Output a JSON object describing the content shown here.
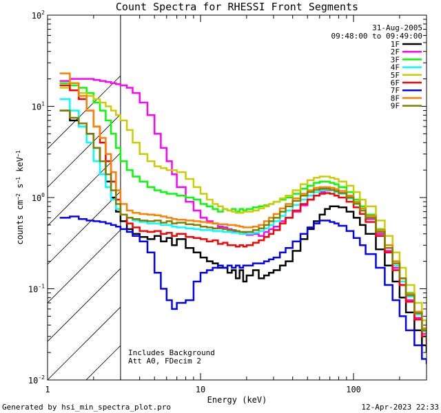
{
  "chart_data": {
    "type": "line",
    "title": "Count Spectra for RHESSI Front Segments",
    "xlabel": "Energy (keV)",
    "ylabel": "counts cm^-2 s^-1 keV^-1",
    "xscale": "log",
    "yscale": "log",
    "xlim": [
      1,
      300
    ],
    "ylim": [
      0.01,
      100
    ],
    "x_ticks": [
      {
        "value": 1,
        "label": "1"
      },
      {
        "value": 10,
        "label": "10"
      },
      {
        "value": 100,
        "label": "100"
      }
    ],
    "y_ticks": [
      {
        "value": 0.01,
        "base": "10",
        "exp": "-2"
      },
      {
        "value": 0.1,
        "base": "10",
        "exp": "-1"
      },
      {
        "value": 1,
        "base": "10",
        "exp": "0"
      },
      {
        "value": 10,
        "base": "10",
        "exp": "1"
      },
      {
        "value": 100,
        "base": "10",
        "exp": "2"
      }
    ],
    "hatched_region": {
      "x_from": 1,
      "x_to": 3
    },
    "date": "31-Aug-2005",
    "time_range": "09:48:00 to 09:49:00",
    "notes": [
      "Includes Background",
      "Att A0, FDecim 2"
    ],
    "series": [
      {
        "name": "1F",
        "color": "#000000",
        "x": [
          1.2,
          1.4,
          1.6,
          1.8,
          2.0,
          2.2,
          2.4,
          2.6,
          2.8,
          3.0,
          3.3,
          3.6,
          4.0,
          4.5,
          5,
          5.5,
          6,
          6.5,
          7,
          8,
          9,
          10,
          11,
          12,
          13,
          14,
          15,
          16,
          17,
          18,
          19,
          20,
          22,
          24,
          26,
          28,
          30,
          33,
          36,
          40,
          45,
          50,
          55,
          60,
          65,
          70,
          75,
          80,
          90,
          100,
          110,
          120,
          140,
          160,
          180,
          200,
          220,
          250,
          280,
          300
        ],
        "y": [
          9,
          7,
          6,
          5,
          3.5,
          2.5,
          1.5,
          1.0,
          0.7,
          0.55,
          0.45,
          0.4,
          0.37,
          0.35,
          0.38,
          0.33,
          0.36,
          0.3,
          0.35,
          0.28,
          0.25,
          0.22,
          0.2,
          0.19,
          0.17,
          0.17,
          0.15,
          0.16,
          0.13,
          0.16,
          0.12,
          0.14,
          0.16,
          0.13,
          0.14,
          0.15,
          0.16,
          0.18,
          0.2,
          0.26,
          0.35,
          0.45,
          0.55,
          0.65,
          0.75,
          0.8,
          0.8,
          0.78,
          0.7,
          0.6,
          0.5,
          0.4,
          0.27,
          0.18,
          0.12,
          0.08,
          0.055,
          0.035,
          0.024,
          0.02
        ]
      },
      {
        "name": "2F",
        "color": "#ff00ff",
        "x": [
          1.2,
          1.4,
          1.6,
          1.8,
          2.0,
          2.2,
          2.4,
          2.6,
          2.8,
          3.0,
          3.3,
          3.6,
          4.0,
          4.5,
          5,
          5.5,
          6,
          6.5,
          7,
          8,
          9,
          10,
          11,
          12,
          13,
          14,
          15,
          16,
          17,
          18,
          19,
          20,
          22,
          24,
          26,
          28,
          30,
          33,
          36,
          40,
          45,
          50,
          55,
          60,
          65,
          70,
          75,
          80,
          90,
          100,
          110,
          120,
          140,
          160,
          180,
          200,
          220,
          250,
          280,
          300
        ],
        "y": [
          19,
          20,
          20,
          20,
          19.5,
          19,
          18.5,
          18,
          17.5,
          17,
          16,
          14,
          11,
          8,
          5,
          3.5,
          2.5,
          1.8,
          1.3,
          0.9,
          0.72,
          0.6,
          0.55,
          0.52,
          0.48,
          0.47,
          0.45,
          0.43,
          0.42,
          0.4,
          0.41,
          0.39,
          0.4,
          0.38,
          0.42,
          0.45,
          0.48,
          0.55,
          0.6,
          0.7,
          0.82,
          0.95,
          1.05,
          1.15,
          1.2,
          1.2,
          1.18,
          1.12,
          1.0,
          0.85,
          0.72,
          0.58,
          0.4,
          0.26,
          0.17,
          0.11,
          0.075,
          0.048,
          0.032,
          0.026
        ]
      },
      {
        "name": "3F",
        "color": "#00ff00",
        "x": [
          1.2,
          1.4,
          1.6,
          1.8,
          2.0,
          2.2,
          2.4,
          2.6,
          2.8,
          3.0,
          3.3,
          3.6,
          4.0,
          4.5,
          5,
          5.5,
          6,
          6.5,
          7,
          8,
          9,
          10,
          11,
          12,
          13,
          14,
          15,
          16,
          17,
          18,
          19,
          20,
          22,
          24,
          26,
          28,
          30,
          33,
          36,
          40,
          45,
          50,
          55,
          60,
          65,
          70,
          75,
          80,
          90,
          100,
          110,
          120,
          140,
          160,
          180,
          200,
          220,
          250,
          280,
          300
        ],
        "y": [
          18,
          17,
          16,
          14,
          11,
          9,
          7,
          5,
          3.5,
          2.5,
          2.0,
          1.7,
          1.5,
          1.3,
          1.2,
          1.15,
          1.1,
          1.1,
          1.05,
          1.0,
          0.95,
          0.85,
          0.8,
          0.75,
          0.7,
          0.75,
          0.72,
          0.75,
          0.7,
          0.75,
          0.72,
          0.75,
          0.78,
          0.8,
          0.82,
          0.85,
          0.9,
          0.95,
          1.0,
          1.1,
          1.25,
          1.35,
          1.45,
          1.5,
          1.5,
          1.45,
          1.4,
          1.3,
          1.15,
          0.95,
          0.8,
          0.65,
          0.45,
          0.3,
          0.2,
          0.13,
          0.09,
          0.056,
          0.036,
          0.028
        ]
      },
      {
        "name": "4F",
        "color": "#00ffff",
        "x": [
          1.2,
          1.4,
          1.6,
          1.8,
          2.0,
          2.2,
          2.4,
          2.6,
          2.8,
          3.0,
          3.3,
          3.6,
          4.0,
          4.5,
          5,
          5.5,
          6,
          6.5,
          7,
          8,
          9,
          10,
          11,
          12,
          13,
          14,
          15,
          16,
          17,
          18,
          19,
          20,
          22,
          24,
          26,
          28,
          30,
          33,
          36,
          40,
          45,
          50,
          55,
          60,
          65,
          70,
          75,
          80,
          90,
          100,
          110,
          120,
          140,
          160,
          180,
          200,
          220,
          250,
          280,
          300
        ],
        "y": [
          12,
          9,
          6,
          4,
          2.5,
          1.8,
          1.3,
          0.95,
          0.75,
          0.65,
          0.6,
          0.56,
          0.54,
          0.52,
          0.52,
          0.5,
          0.5,
          0.48,
          0.47,
          0.46,
          0.45,
          0.44,
          0.44,
          0.43,
          0.43,
          0.42,
          0.42,
          0.41,
          0.41,
          0.4,
          0.4,
          0.4,
          0.41,
          0.43,
          0.46,
          0.5,
          0.55,
          0.63,
          0.72,
          0.83,
          0.95,
          1.05,
          1.15,
          1.2,
          1.22,
          1.2,
          1.15,
          1.1,
          0.98,
          0.85,
          0.72,
          0.6,
          0.42,
          0.28,
          0.18,
          0.12,
          0.082,
          0.052,
          0.034,
          0.027
        ]
      },
      {
        "name": "5F",
        "color": "#cccc00",
        "x": [
          1.2,
          1.4,
          1.6,
          1.8,
          2.0,
          2.2,
          2.4,
          2.6,
          2.8,
          3.0,
          3.3,
          3.6,
          4.0,
          4.5,
          5,
          5.5,
          6,
          6.5,
          7,
          8,
          9,
          10,
          11,
          12,
          13,
          14,
          15,
          16,
          17,
          18,
          19,
          20,
          22,
          24,
          26,
          28,
          30,
          33,
          36,
          40,
          45,
          50,
          55,
          60,
          65,
          70,
          75,
          80,
          90,
          100,
          110,
          120,
          140,
          160,
          180,
          200,
          220,
          250,
          280,
          300
        ],
        "y": [
          16,
          15,
          14,
          13,
          12,
          11,
          10,
          9,
          8,
          7,
          5.5,
          4,
          3.0,
          2.5,
          2.2,
          2.1,
          2.0,
          2.0,
          1.9,
          1.6,
          1.3,
          1.1,
          0.95,
          0.85,
          0.8,
          0.75,
          0.72,
          0.7,
          0.68,
          0.68,
          0.7,
          0.7,
          0.72,
          0.76,
          0.8,
          0.85,
          0.9,
          0.98,
          1.05,
          1.2,
          1.4,
          1.55,
          1.65,
          1.7,
          1.7,
          1.65,
          1.6,
          1.5,
          1.35,
          1.15,
          0.95,
          0.8,
          0.56,
          0.38,
          0.25,
          0.17,
          0.11,
          0.07,
          0.045,
          0.035
        ]
      },
      {
        "name": "6F",
        "color": "#ff0000",
        "x": [
          1.2,
          1.4,
          1.6,
          1.8,
          2.0,
          2.2,
          2.4,
          2.6,
          2.8,
          3.0,
          3.3,
          3.6,
          4.0,
          4.5,
          5,
          5.5,
          6,
          6.5,
          7,
          8,
          9,
          10,
          11,
          12,
          13,
          14,
          15,
          16,
          17,
          18,
          19,
          20,
          22,
          24,
          26,
          28,
          30,
          33,
          36,
          40,
          45,
          50,
          55,
          60,
          65,
          70,
          75,
          80,
          90,
          100,
          110,
          120,
          140,
          160,
          180,
          200,
          220,
          250,
          280,
          300
        ],
        "y": [
          17,
          15,
          12,
          9,
          6,
          4,
          2.5,
          1.5,
          0.95,
          0.65,
          0.52,
          0.47,
          0.43,
          0.42,
          0.43,
          0.4,
          0.41,
          0.38,
          0.4,
          0.37,
          0.36,
          0.35,
          0.33,
          0.34,
          0.31,
          0.32,
          0.3,
          0.3,
          0.29,
          0.3,
          0.29,
          0.3,
          0.32,
          0.34,
          0.37,
          0.4,
          0.44,
          0.52,
          0.6,
          0.72,
          0.85,
          0.95,
          1.05,
          1.1,
          1.12,
          1.1,
          1.05,
          1.0,
          0.9,
          0.78,
          0.66,
          0.54,
          0.38,
          0.25,
          0.16,
          0.11,
          0.072,
          0.046,
          0.03,
          0.024
        ]
      },
      {
        "name": "7F",
        "color": "#0000ff",
        "x": [
          1.2,
          1.4,
          1.6,
          1.8,
          2.0,
          2.2,
          2.4,
          2.6,
          2.8,
          3.0,
          3.3,
          3.6,
          4.0,
          4.5,
          5,
          5.5,
          6,
          6.5,
          7,
          8,
          9,
          10,
          11,
          12,
          13,
          14,
          15,
          16,
          17,
          18,
          19,
          20,
          22,
          24,
          26,
          28,
          30,
          33,
          36,
          40,
          45,
          50,
          55,
          60,
          65,
          70,
          75,
          80,
          90,
          100,
          110,
          120,
          140,
          160,
          180,
          200,
          220,
          250,
          280,
          300
        ],
        "y": [
          0.6,
          0.62,
          0.58,
          0.56,
          0.55,
          0.54,
          0.52,
          0.5,
          0.48,
          0.45,
          0.42,
          0.38,
          0.33,
          0.25,
          0.15,
          0.1,
          0.075,
          0.06,
          0.07,
          0.075,
          0.12,
          0.15,
          0.16,
          0.17,
          0.18,
          0.17,
          0.18,
          0.17,
          0.18,
          0.17,
          0.18,
          0.18,
          0.19,
          0.19,
          0.2,
          0.21,
          0.22,
          0.25,
          0.28,
          0.33,
          0.4,
          0.47,
          0.52,
          0.56,
          0.56,
          0.54,
          0.52,
          0.49,
          0.43,
          0.36,
          0.3,
          0.24,
          0.17,
          0.11,
          0.075,
          0.05,
          0.035,
          0.024,
          0.017,
          0.015
        ]
      },
      {
        "name": "8F",
        "color": "#ff8000",
        "x": [
          1.2,
          1.4,
          1.6,
          1.8,
          2.0,
          2.2,
          2.4,
          2.6,
          2.8,
          3.0,
          3.3,
          3.6,
          4.0,
          4.5,
          5,
          5.5,
          6,
          6.5,
          7,
          8,
          9,
          10,
          11,
          12,
          13,
          14,
          15,
          16,
          17,
          18,
          19,
          20,
          22,
          24,
          26,
          28,
          30,
          33,
          36,
          40,
          45,
          50,
          55,
          60,
          65,
          70,
          75,
          80,
          90,
          100,
          110,
          120,
          140,
          160,
          180,
          200,
          220,
          250,
          280,
          300
        ],
        "y": [
          23,
          18,
          13,
          9,
          6,
          4.5,
          3,
          1.9,
          1.2,
          0.85,
          0.72,
          0.68,
          0.66,
          0.65,
          0.64,
          0.62,
          0.6,
          0.58,
          0.57,
          0.56,
          0.55,
          0.54,
          0.53,
          0.52,
          0.51,
          0.51,
          0.5,
          0.5,
          0.49,
          0.48,
          0.47,
          0.47,
          0.48,
          0.5,
          0.55,
          0.6,
          0.66,
          0.76,
          0.85,
          0.98,
          1.1,
          1.2,
          1.28,
          1.3,
          1.3,
          1.28,
          1.24,
          1.18,
          1.05,
          0.9,
          0.76,
          0.63,
          0.44,
          0.3,
          0.2,
          0.13,
          0.088,
          0.056,
          0.037,
          0.03
        ]
      },
      {
        "name": "9F",
        "color": "#808000",
        "x": [
          1.2,
          1.4,
          1.6,
          1.8,
          2.0,
          2.2,
          2.4,
          2.6,
          2.8,
          3.0,
          3.3,
          3.6,
          4.0,
          4.5,
          5,
          5.5,
          6,
          6.5,
          7,
          8,
          9,
          10,
          11,
          12,
          13,
          14,
          15,
          16,
          17,
          18,
          19,
          20,
          22,
          24,
          26,
          28,
          30,
          33,
          36,
          40,
          45,
          50,
          55,
          60,
          65,
          70,
          75,
          80,
          90,
          100,
          110,
          120,
          140,
          160,
          180,
          200,
          220,
          250,
          280,
          300
        ],
        "y": [
          9,
          7.5,
          6.5,
          5,
          3.5,
          2.5,
          1.8,
          1.2,
          0.85,
          0.65,
          0.6,
          0.58,
          0.56,
          0.55,
          0.56,
          0.53,
          0.55,
          0.52,
          0.53,
          0.51,
          0.5,
          0.48,
          0.47,
          0.46,
          0.46,
          0.45,
          0.44,
          0.44,
          0.43,
          0.42,
          0.42,
          0.42,
          0.44,
          0.46,
          0.5,
          0.55,
          0.6,
          0.7,
          0.8,
          0.92,
          1.05,
          1.15,
          1.22,
          1.25,
          1.25,
          1.22,
          1.18,
          1.12,
          1.0,
          0.86,
          0.72,
          0.6,
          0.42,
          0.28,
          0.19,
          0.13,
          0.085,
          0.054,
          0.035,
          0.028
        ]
      }
    ]
  },
  "footer": {
    "generated_by": "Generated by hsi_min_spectra_plot.pro",
    "timestamp": "12-Apr-2023 22:33"
  }
}
